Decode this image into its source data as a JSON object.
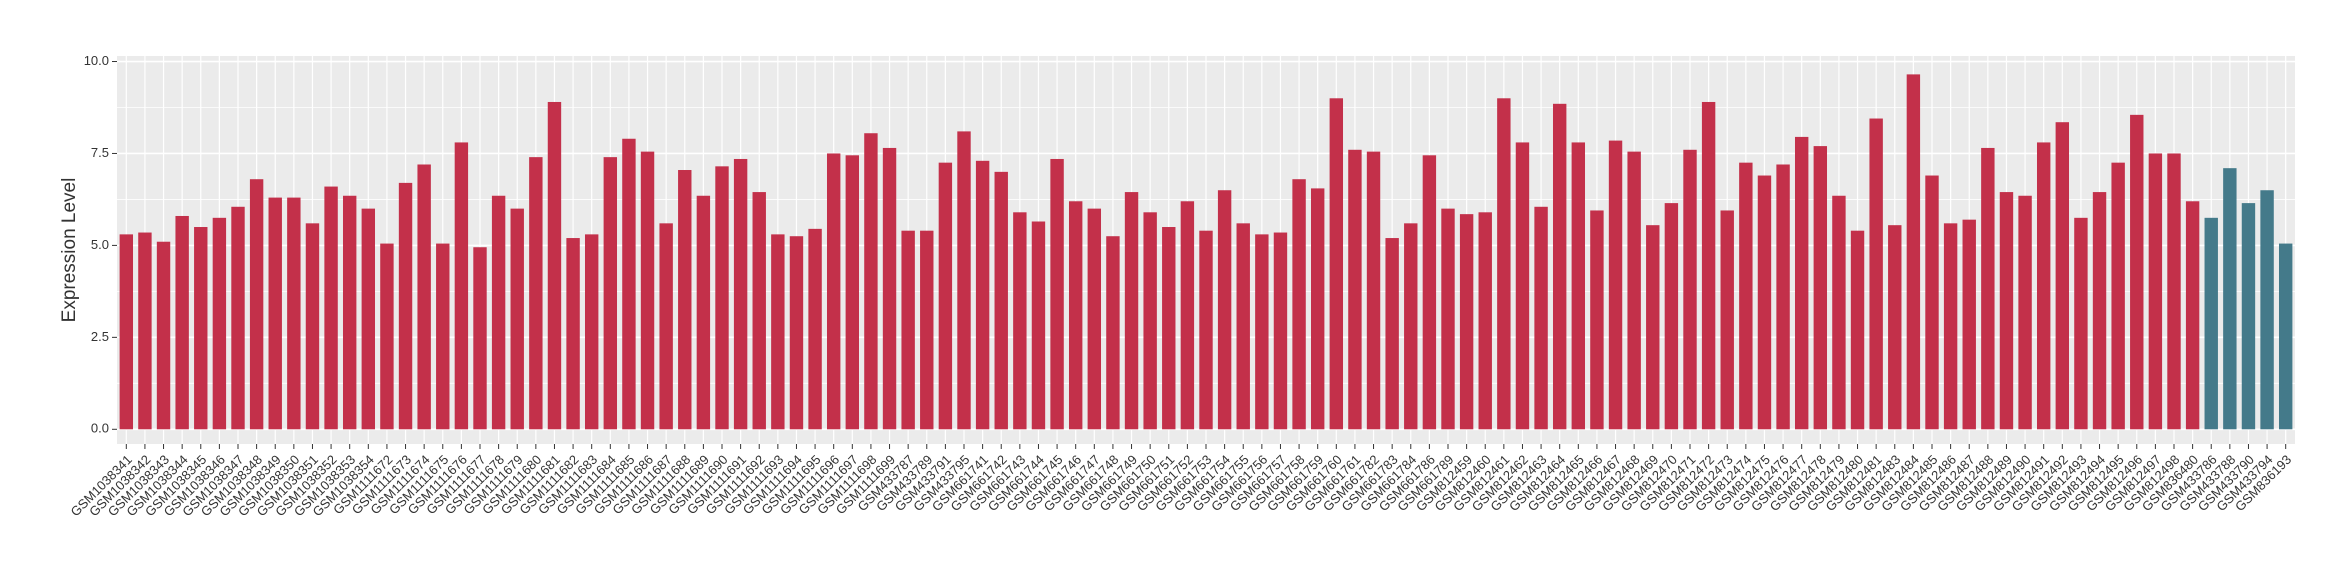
{
  "chart_data": {
    "type": "bar",
    "y_label": "Expression Level",
    "categories": [
      "GSM1038341",
      "GSM1038342",
      "GSM1038343",
      "GSM1038344",
      "GSM1038345",
      "GSM1038346",
      "GSM1038347",
      "GSM1038348",
      "GSM1038349",
      "GSM1038350",
      "GSM1038351",
      "GSM1038352",
      "GSM1038353",
      "GSM1038354",
      "GSM1111672",
      "GSM1111673",
      "GSM1111674",
      "GSM1111675",
      "GSM1111676",
      "GSM1111677",
      "GSM1111678",
      "GSM1111679",
      "GSM1111680",
      "GSM1111681",
      "GSM1111682",
      "GSM1111683",
      "GSM1111684",
      "GSM1111685",
      "GSM1111686",
      "GSM1111687",
      "GSM1111688",
      "GSM1111689",
      "GSM1111690",
      "GSM1111691",
      "GSM1111692",
      "GSM1111693",
      "GSM1111694",
      "GSM1111695",
      "GSM1111696",
      "GSM1111697",
      "GSM1111698",
      "GSM1111699",
      "GSM433787",
      "GSM433789",
      "GSM433791",
      "GSM433795",
      "GSM661741",
      "GSM661742",
      "GSM661743",
      "GSM661744",
      "GSM661745",
      "GSM661746",
      "GSM661747",
      "GSM661748",
      "GSM661749",
      "GSM661750",
      "GSM661751",
      "GSM661752",
      "GSM661753",
      "GSM661754",
      "GSM661755",
      "GSM661756",
      "GSM661757",
      "GSM661758",
      "GSM661759",
      "GSM661760",
      "GSM661761",
      "GSM661782",
      "GSM661783",
      "GSM661784",
      "GSM661786",
      "GSM661789",
      "GSM812459",
      "GSM812460",
      "GSM812461",
      "GSM812462",
      "GSM812463",
      "GSM812464",
      "GSM812465",
      "GSM812466",
      "GSM812467",
      "GSM812468",
      "GSM812469",
      "GSM812470",
      "GSM812471",
      "GSM812472",
      "GSM812473",
      "GSM812474",
      "GSM812475",
      "GSM812476",
      "GSM812477",
      "GSM812478",
      "GSM812479",
      "GSM812480",
      "GSM812481",
      "GSM812483",
      "GSM812484",
      "GSM812485",
      "GSM812486",
      "GSM812487",
      "GSM812488",
      "GSM812489",
      "GSM812490",
      "GSM812491",
      "GSM812492",
      "GSM812493",
      "GSM812494",
      "GSM812495",
      "GSM812496",
      "GSM812497",
      "GSM812498",
      "GSM836480",
      "GSM433786",
      "GSM433788",
      "GSM433790",
      "GSM433794",
      "GSM836193"
    ],
    "values": [
      5.3,
      5.35,
      5.1,
      5.8,
      5.5,
      5.75,
      6.05,
      6.8,
      6.3,
      6.3,
      5.6,
      6.6,
      6.35,
      6.0,
      5.05,
      6.7,
      7.2,
      5.05,
      7.8,
      4.95,
      6.35,
      6.0,
      7.4,
      8.9,
      5.2,
      5.3,
      7.4,
      7.9,
      7.55,
      5.6,
      7.05,
      6.35,
      7.15,
      7.35,
      6.45,
      5.3,
      5.25,
      5.45,
      7.5,
      7.45,
      8.05,
      7.65,
      5.4,
      5.4,
      7.25,
      8.1,
      7.3,
      7.0,
      5.9,
      5.65,
      7.35,
      6.2,
      6.0,
      5.25,
      6.45,
      5.9,
      5.5,
      6.2,
      5.4,
      6.5,
      5.6,
      5.3,
      5.35,
      6.8,
      6.55,
      9.0,
      7.6,
      7.55,
      5.2,
      5.6,
      7.45,
      6.0,
      5.85,
      5.9,
      9.0,
      7.8,
      6.05,
      8.85,
      7.8,
      5.95,
      7.85,
      7.55,
      5.55,
      6.15,
      7.6,
      8.9,
      5.95,
      7.25,
      6.9,
      7.2,
      7.95,
      7.7,
      6.35,
      5.4,
      8.45,
      5.55,
      9.65,
      6.9,
      5.6,
      5.7,
      7.65,
      6.45,
      6.35,
      7.8,
      8.35,
      5.75,
      6.45,
      7.25,
      8.55,
      7.5,
      7.5,
      6.2,
      5.75,
      7.1,
      6.15,
      6.5,
      5.05
    ],
    "colors": [
      "#c3304a",
      "#c3304a",
      "#c3304a",
      "#c3304a",
      "#c3304a",
      "#c3304a",
      "#c3304a",
      "#c3304a",
      "#c3304a",
      "#c3304a",
      "#c3304a",
      "#c3304a",
      "#c3304a",
      "#c3304a",
      "#c3304a",
      "#c3304a",
      "#c3304a",
      "#c3304a",
      "#c3304a",
      "#c3304a",
      "#c3304a",
      "#c3304a",
      "#c3304a",
      "#c3304a",
      "#c3304a",
      "#c3304a",
      "#c3304a",
      "#c3304a",
      "#c3304a",
      "#c3304a",
      "#c3304a",
      "#c3304a",
      "#c3304a",
      "#c3304a",
      "#c3304a",
      "#c3304a",
      "#c3304a",
      "#c3304a",
      "#c3304a",
      "#c3304a",
      "#c3304a",
      "#c3304a",
      "#c3304a",
      "#c3304a",
      "#c3304a",
      "#c3304a",
      "#c3304a",
      "#c3304a",
      "#c3304a",
      "#c3304a",
      "#c3304a",
      "#c3304a",
      "#c3304a",
      "#c3304a",
      "#c3304a",
      "#c3304a",
      "#c3304a",
      "#c3304a",
      "#c3304a",
      "#c3304a",
      "#c3304a",
      "#c3304a",
      "#c3304a",
      "#c3304a",
      "#c3304a",
      "#c3304a",
      "#c3304a",
      "#c3304a",
      "#c3304a",
      "#c3304a",
      "#c3304a",
      "#c3304a",
      "#c3304a",
      "#c3304a",
      "#c3304a",
      "#c3304a",
      "#c3304a",
      "#c3304a",
      "#c3304a",
      "#c3304a",
      "#c3304a",
      "#c3304a",
      "#c3304a",
      "#c3304a",
      "#c3304a",
      "#c3304a",
      "#c3304a",
      "#c3304a",
      "#c3304a",
      "#c3304a",
      "#c3304a",
      "#c3304a",
      "#c3304a",
      "#c3304a",
      "#c3304a",
      "#c3304a",
      "#c3304a",
      "#c3304a",
      "#c3304a",
      "#c3304a",
      "#c3304a",
      "#c3304a",
      "#c3304a",
      "#c3304a",
      "#c3304a",
      "#c3304a",
      "#c3304a",
      "#c3304a",
      "#c3304a",
      "#c3304a",
      "#c3304a",
      "#c3304a",
      "#447a8a",
      "#447a8a",
      "#447a8a",
      "#447a8a",
      "#447a8a"
    ],
    "ylim": [
      -0.4,
      10.15
    ],
    "yticks": [
      {
        "value": 0,
        "label": "0.0"
      },
      {
        "value": 2.5,
        "label": "2.5"
      },
      {
        "value": 5,
        "label": "5.0"
      },
      {
        "value": 7.5,
        "label": "7.5"
      },
      {
        "value": 10,
        "label": "10.0"
      }
    ],
    "grid": true
  }
}
